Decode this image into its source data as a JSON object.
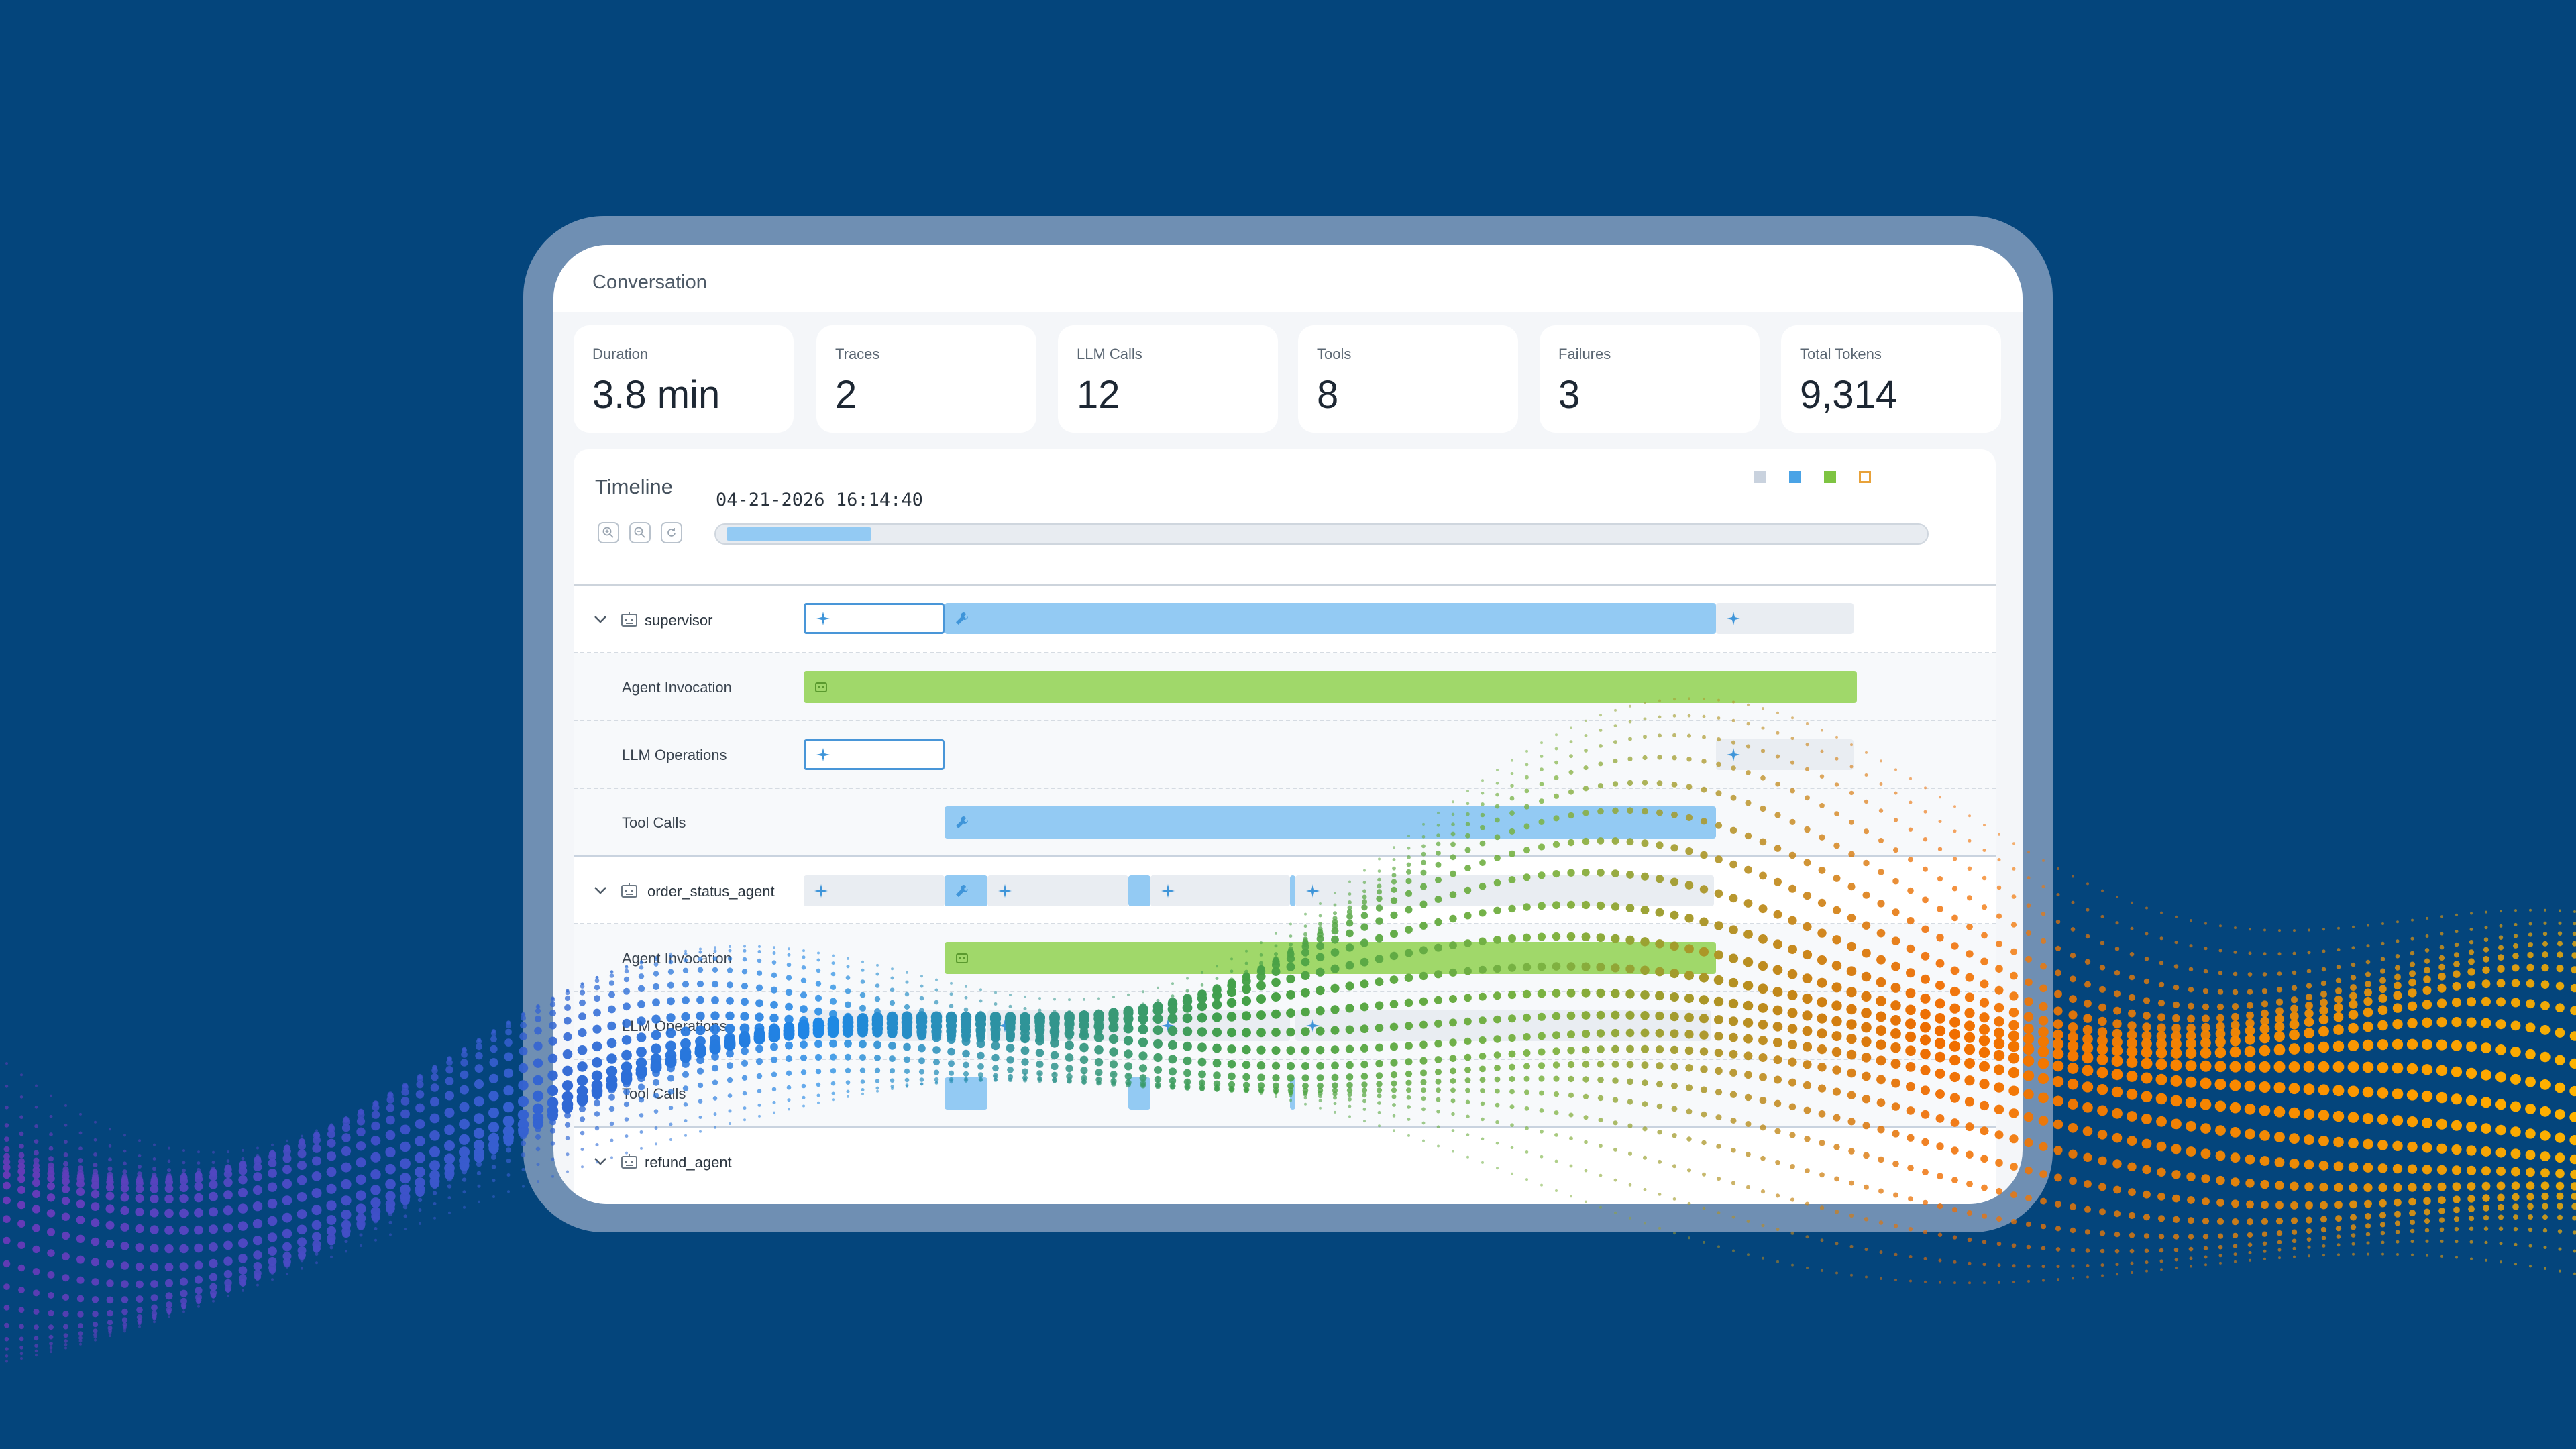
{
  "title": "Conversation",
  "stats": [
    {
      "label": "Duration",
      "value": "3.8 min"
    },
    {
      "label": "Traces",
      "value": "2"
    },
    {
      "label": "LLM Calls",
      "value": "12"
    },
    {
      "label": "Tools",
      "value": "8"
    },
    {
      "label": "Failures",
      "value": "3"
    },
    {
      "label": "Total Tokens",
      "value": "9,314"
    }
  ],
  "timeline": {
    "title": "Timeline",
    "timestamp": "04-21-2026 16:14:40",
    "legend_colors": [
      "#c9d2de",
      "#4aa3e6",
      "#7ec442",
      "#e8a23a"
    ],
    "zoom_controls": [
      "zoom-in-icon",
      "zoom-out-icon",
      "reset-icon"
    ]
  },
  "groups": [
    {
      "name": "supervisor",
      "rows": [
        "Agent Invocation",
        "LLM Operations",
        "Tool Calls"
      ]
    },
    {
      "name": "order_status_agent",
      "rows": [
        "Agent Invocation",
        "LLM Operations",
        "Tool Calls"
      ]
    },
    {
      "name": "refund_agent",
      "rows": []
    }
  ],
  "colors": {
    "background": "#04457c",
    "llm_bar": "#e9edf2",
    "tool_bar": "#93caf3",
    "agent_bar": "#a0d86a",
    "selected_outline": "#4996d8"
  }
}
